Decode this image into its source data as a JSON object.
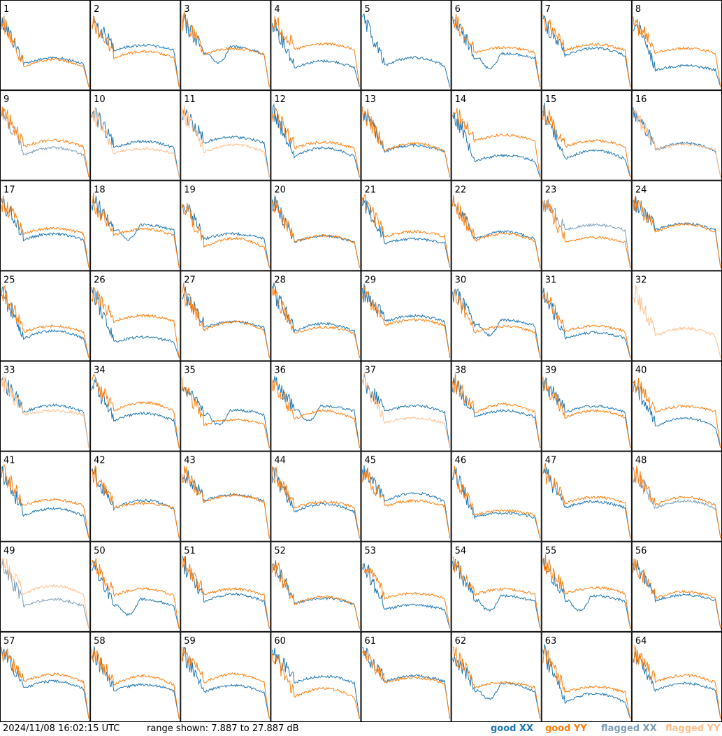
{
  "chart_data": {
    "type": "line",
    "title": "",
    "xlabel": "",
    "ylabel": "",
    "grid": false,
    "layout": {
      "rows": 8,
      "cols": 8
    },
    "ylim": [
      7.887,
      27.887
    ],
    "range_text": "range shown: 7.887 to 27.887 dB",
    "timestamp": "2024/11/08 16:02:15 UTC",
    "legend": {
      "good_xx": "good XX",
      "good_yy": "good YY",
      "flagged_xx": "flagged XX",
      "flagged_yy": "flagged YY",
      "placement": "bottom-right"
    },
    "colors": {
      "good_xx": "#1f77b4",
      "good_yy": "#ff7f0e",
      "flagged_xx": "#7f9fb8",
      "flagged_yy": "#ffbe8a"
    },
    "panel_labels": [
      "1",
      "2",
      "3",
      "4",
      "5",
      "6",
      "7",
      "8",
      "9",
      "10",
      "11",
      "12",
      "13",
      "14",
      "15",
      "16",
      "17",
      "18",
      "19",
      "20",
      "21",
      "22",
      "23",
      "24",
      "25",
      "26",
      "27",
      "28",
      "29",
      "30",
      "31",
      "32",
      "33",
      "34",
      "35",
      "36",
      "37",
      "38",
      "39",
      "40",
      "41",
      "42",
      "43",
      "44",
      "45",
      "46",
      "47",
      "48",
      "49",
      "50",
      "51",
      "52",
      "53",
      "54",
      "55",
      "56",
      "57",
      "58",
      "59",
      "60",
      "61",
      "62",
      "63",
      "64"
    ],
    "panel_flags": {
      "xx_flagged": [
        "9",
        "23",
        "48",
        "49"
      ],
      "yy_flagged": [
        "10",
        "11",
        "16",
        "32",
        "33",
        "37",
        "49"
      ],
      "xx_missing": [
        "32"
      ],
      "yy_missing": [
        "5"
      ]
    }
  }
}
